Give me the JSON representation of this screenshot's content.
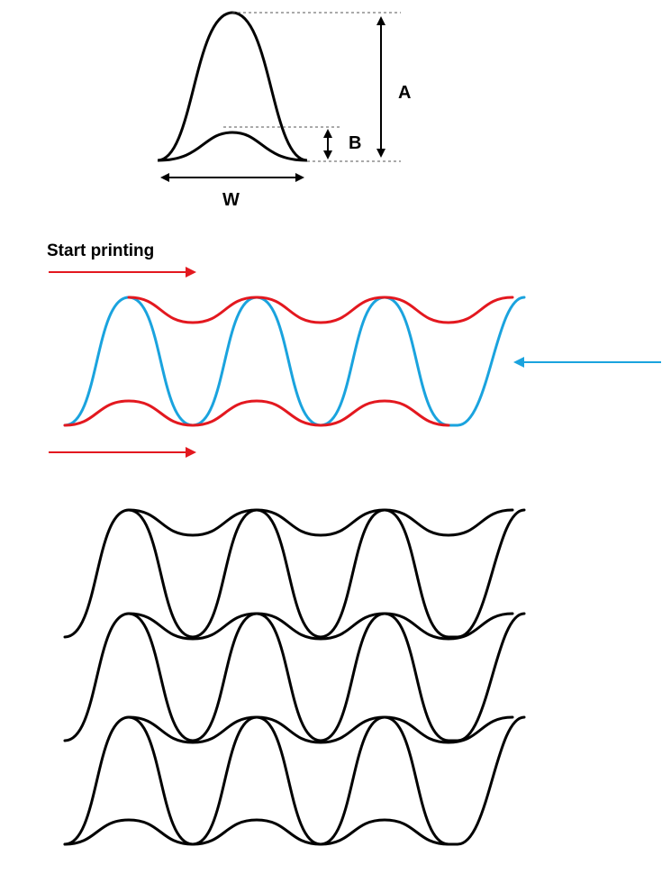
{
  "unit_cell": {
    "label_a": "A",
    "label_b": "B",
    "label_w": "W"
  },
  "printing": {
    "start_label": "Start printing"
  },
  "colors": {
    "outline": "#000000",
    "forward_pass": "#e3181f",
    "return_pass": "#1aa3de"
  }
}
